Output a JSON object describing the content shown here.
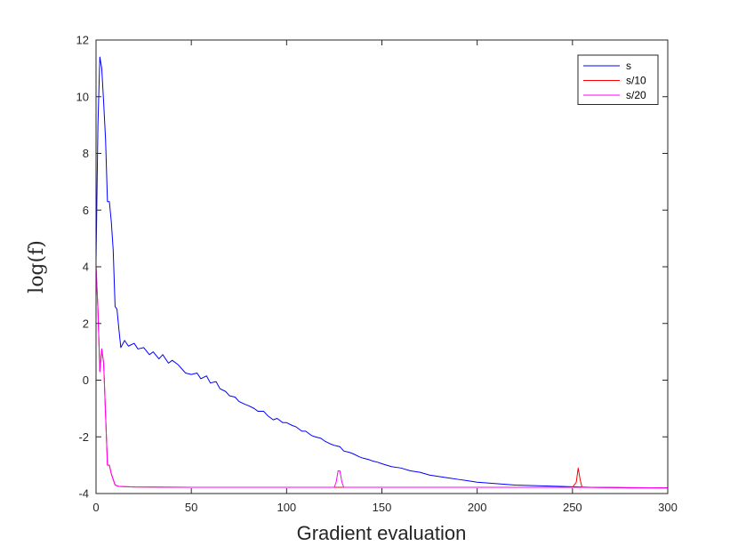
{
  "chart_data": {
    "type": "line",
    "title": "",
    "xlabel": "Gradient evaluation",
    "ylabel": "log(f)",
    "xlim": [
      0,
      300
    ],
    "ylim": [
      -4,
      12
    ],
    "xticks": [
      0,
      50,
      100,
      150,
      200,
      250,
      300
    ],
    "yticks": [
      -4,
      -2,
      0,
      2,
      4,
      6,
      8,
      10,
      12
    ],
    "grid": false,
    "legend_position": "top-right",
    "series": [
      {
        "name": "s",
        "color": "#0000ff",
        "points": [
          [
            0,
            4.2
          ],
          [
            1,
            9.0
          ],
          [
            2,
            11.4
          ],
          [
            3,
            11.0
          ],
          [
            4,
            9.8
          ],
          [
            5,
            8.5
          ],
          [
            6,
            6.3
          ],
          [
            7,
            6.3
          ],
          [
            8,
            5.6
          ],
          [
            9,
            4.6
          ],
          [
            10,
            2.6
          ],
          [
            11,
            2.5
          ],
          [
            12,
            1.8
          ],
          [
            13,
            1.15
          ],
          [
            15,
            1.4
          ],
          [
            17,
            1.2
          ],
          [
            20,
            1.3
          ],
          [
            22,
            1.1
          ],
          [
            25,
            1.15
          ],
          [
            28,
            0.9
          ],
          [
            30,
            1.0
          ],
          [
            33,
            0.75
          ],
          [
            35,
            0.9
          ],
          [
            38,
            0.6
          ],
          [
            40,
            0.7
          ],
          [
            43,
            0.55
          ],
          [
            45,
            0.4
          ],
          [
            47,
            0.25
          ],
          [
            50,
            0.2
          ],
          [
            53,
            0.25
          ],
          [
            55,
            0.05
          ],
          [
            58,
            0.15
          ],
          [
            60,
            -0.1
          ],
          [
            63,
            -0.05
          ],
          [
            65,
            -0.3
          ],
          [
            68,
            -0.4
          ],
          [
            70,
            -0.55
          ],
          [
            73,
            -0.6
          ],
          [
            75,
            -0.75
          ],
          [
            78,
            -0.85
          ],
          [
            80,
            -0.9
          ],
          [
            83,
            -1.0
          ],
          [
            85,
            -1.1
          ],
          [
            88,
            -1.1
          ],
          [
            90,
            -1.25
          ],
          [
            93,
            -1.4
          ],
          [
            95,
            -1.35
          ],
          [
            98,
            -1.5
          ],
          [
            100,
            -1.5
          ],
          [
            103,
            -1.6
          ],
          [
            105,
            -1.65
          ],
          [
            108,
            -1.8
          ],
          [
            110,
            -1.8
          ],
          [
            113,
            -1.95
          ],
          [
            115,
            -2.0
          ],
          [
            118,
            -2.05
          ],
          [
            120,
            -2.15
          ],
          [
            123,
            -2.25
          ],
          [
            125,
            -2.3
          ],
          [
            128,
            -2.35
          ],
          [
            130,
            -2.5
          ],
          [
            133,
            -2.55
          ],
          [
            135,
            -2.6
          ],
          [
            138,
            -2.7
          ],
          [
            140,
            -2.75
          ],
          [
            143,
            -2.8
          ],
          [
            145,
            -2.85
          ],
          [
            148,
            -2.9
          ],
          [
            150,
            -2.95
          ],
          [
            155,
            -3.05
          ],
          [
            160,
            -3.1
          ],
          [
            165,
            -3.2
          ],
          [
            170,
            -3.25
          ],
          [
            175,
            -3.35
          ],
          [
            180,
            -3.4
          ],
          [
            185,
            -3.45
          ],
          [
            190,
            -3.5
          ],
          [
            195,
            -3.55
          ],
          [
            200,
            -3.6
          ],
          [
            210,
            -3.65
          ],
          [
            220,
            -3.7
          ],
          [
            230,
            -3.72
          ],
          [
            240,
            -3.74
          ],
          [
            250,
            -3.76
          ],
          [
            260,
            -3.78
          ],
          [
            270,
            -3.79
          ],
          [
            280,
            -3.8
          ],
          [
            290,
            -3.8
          ],
          [
            300,
            -3.8
          ]
        ]
      },
      {
        "name": "s/10",
        "color": "#ff0000",
        "points": [
          [
            0,
            4.0
          ],
          [
            1,
            2.5
          ],
          [
            2,
            0.3
          ],
          [
            3,
            1.1
          ],
          [
            4,
            0.6
          ],
          [
            5,
            -1.2
          ],
          [
            6,
            -3.0
          ],
          [
            7,
            -3.0
          ],
          [
            8,
            -3.3
          ],
          [
            9,
            -3.5
          ],
          [
            10,
            -3.7
          ],
          [
            12,
            -3.75
          ],
          [
            20,
            -3.77
          ],
          [
            50,
            -3.78
          ],
          [
            100,
            -3.78
          ],
          [
            150,
            -3.78
          ],
          [
            200,
            -3.78
          ],
          [
            250,
            -3.78
          ],
          [
            252,
            -3.6
          ],
          [
            253,
            -3.1
          ],
          [
            254,
            -3.5
          ],
          [
            255,
            -3.78
          ],
          [
            300,
            -3.8
          ]
        ]
      },
      {
        "name": "s/20",
        "color": "#ff00ff",
        "points": [
          [
            0,
            4.0
          ],
          [
            1,
            2.5
          ],
          [
            2,
            0.3
          ],
          [
            3,
            1.1
          ],
          [
            4,
            0.6
          ],
          [
            5,
            -1.2
          ],
          [
            6,
            -3.0
          ],
          [
            7,
            -3.0
          ],
          [
            8,
            -3.3
          ],
          [
            9,
            -3.5
          ],
          [
            10,
            -3.7
          ],
          [
            12,
            -3.75
          ],
          [
            20,
            -3.77
          ],
          [
            50,
            -3.78
          ],
          [
            100,
            -3.78
          ],
          [
            125,
            -3.78
          ],
          [
            126,
            -3.6
          ],
          [
            127,
            -3.2
          ],
          [
            128,
            -3.2
          ],
          [
            129,
            -3.6
          ],
          [
            130,
            -3.78
          ],
          [
            200,
            -3.78
          ],
          [
            250,
            -3.78
          ],
          [
            300,
            -3.8
          ]
        ]
      }
    ]
  }
}
